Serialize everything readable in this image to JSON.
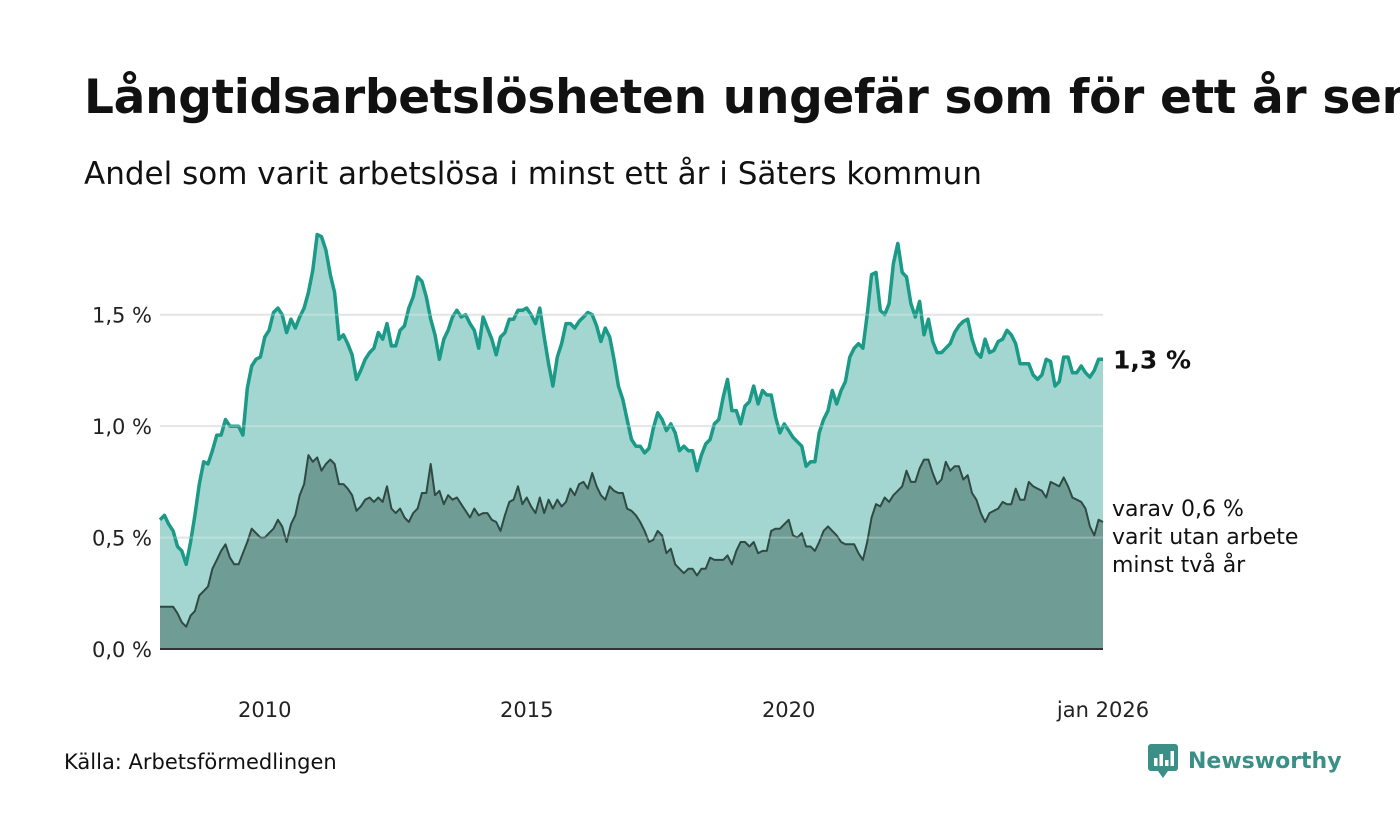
{
  "title": "Långtidsarbetslösheten ungefär som för ett år sen",
  "subtitle": "Andel som varit arbetslösa i minst ett år i Säters kommun",
  "source": "Källa: Arbetsförmedlingen",
  "brand": {
    "name": "Newsworthy",
    "icon": "newsworthy-logo-icon"
  },
  "colors": {
    "total_line": "#1a9a87",
    "total_fill": "#a4d6d1",
    "sub_line": "#2f4a42",
    "sub_fill": "#6f9d96",
    "grid": "#dddddd",
    "brand": "#3a8f86"
  },
  "chart_data": {
    "type": "area",
    "title": "Långtidsarbetslösheten ungefär som för ett år sen",
    "subtitle": "Andel som varit arbetslösa i minst ett år i Säters kommun",
    "x_start": 2008.0,
    "x_step": 0.0833333,
    "xlim": [
      2008.0,
      2026.0
    ],
    "ylim": [
      0,
      1.9
    ],
    "x_ticks": [
      {
        "value": 2010,
        "label": "2010"
      },
      {
        "value": 2015,
        "label": "2015"
      },
      {
        "value": 2020,
        "label": "2020"
      },
      {
        "value": 2026,
        "label": "jan 2026"
      }
    ],
    "y_ticks": [
      {
        "value": 0,
        "label": "0,0 %"
      },
      {
        "value": 0.5,
        "label": "0,5 %"
      },
      {
        "value": 1.0,
        "label": "1,0 %"
      },
      {
        "value": 1.5,
        "label": "1,5 %"
      }
    ],
    "series": [
      {
        "name": "Minst ett år",
        "end_label": "1,3 %",
        "values": [
          0.58,
          0.6,
          0.56,
          0.53,
          0.46,
          0.44,
          0.38,
          0.48,
          0.6,
          0.74,
          0.84,
          0.83,
          0.89,
          0.96,
          0.96,
          1.03,
          1.0,
          1.0,
          1.0,
          0.96,
          1.17,
          1.27,
          1.3,
          1.31,
          1.4,
          1.43,
          1.51,
          1.53,
          1.5,
          1.42,
          1.48,
          1.44,
          1.49,
          1.53,
          1.6,
          1.7,
          1.86,
          1.85,
          1.79,
          1.68,
          1.6,
          1.39,
          1.41,
          1.37,
          1.32,
          1.21,
          1.25,
          1.3,
          1.33,
          1.35,
          1.42,
          1.39,
          1.46,
          1.36,
          1.36,
          1.43,
          1.45,
          1.53,
          1.58,
          1.67,
          1.65,
          1.58,
          1.48,
          1.41,
          1.3,
          1.39,
          1.43,
          1.49,
          1.52,
          1.49,
          1.5,
          1.46,
          1.43,
          1.35,
          1.49,
          1.44,
          1.39,
          1.32,
          1.4,
          1.42,
          1.48,
          1.48,
          1.52,
          1.52,
          1.53,
          1.5,
          1.46,
          1.53,
          1.4,
          1.28,
          1.18,
          1.31,
          1.37,
          1.46,
          1.46,
          1.44,
          1.47,
          1.49,
          1.51,
          1.5,
          1.45,
          1.38,
          1.44,
          1.4,
          1.3,
          1.18,
          1.12,
          1.03,
          0.94,
          0.91,
          0.91,
          0.88,
          0.9,
          0.99,
          1.06,
          1.03,
          0.98,
          1.01,
          0.97,
          0.89,
          0.91,
          0.89,
          0.89,
          0.8,
          0.87,
          0.92,
          0.94,
          1.01,
          1.03,
          1.13,
          1.21,
          1.07,
          1.07,
          1.01,
          1.09,
          1.11,
          1.18,
          1.1,
          1.16,
          1.14,
          1.14,
          1.04,
          0.97,
          1.01,
          0.98,
          0.95,
          0.93,
          0.91,
          0.82,
          0.84,
          0.84,
          0.97,
          1.03,
          1.07,
          1.16,
          1.1,
          1.16,
          1.2,
          1.31,
          1.35,
          1.37,
          1.35,
          1.5,
          1.68,
          1.69,
          1.52,
          1.5,
          1.55,
          1.73,
          1.82,
          1.69,
          1.67,
          1.55,
          1.49,
          1.56,
          1.41,
          1.48,
          1.38,
          1.33,
          1.33,
          1.35,
          1.37,
          1.42,
          1.45,
          1.47,
          1.48,
          1.39,
          1.33,
          1.31,
          1.39,
          1.33,
          1.34,
          1.38,
          1.39,
          1.43,
          1.41,
          1.37,
          1.28,
          1.28,
          1.28,
          1.23,
          1.21,
          1.23,
          1.3,
          1.29,
          1.18,
          1.2,
          1.31,
          1.31,
          1.24,
          1.24,
          1.27,
          1.24,
          1.22,
          1.25,
          1.3,
          1.3
        ]
      },
      {
        "name": "Minst två år",
        "end_label": "varav 0,6 % varit utan arbete minst två år",
        "end_label_lines": [
          "varav 0,6 %",
          "varit utan arbete",
          "minst två år"
        ],
        "values": [
          0.19,
          0.19,
          0.19,
          0.19,
          0.16,
          0.12,
          0.1,
          0.15,
          0.17,
          0.24,
          0.26,
          0.28,
          0.36,
          0.4,
          0.44,
          0.47,
          0.41,
          0.38,
          0.38,
          0.43,
          0.48,
          0.54,
          0.52,
          0.5,
          0.5,
          0.52,
          0.54,
          0.58,
          0.55,
          0.48,
          0.56,
          0.6,
          0.69,
          0.74,
          0.87,
          0.84,
          0.86,
          0.8,
          0.83,
          0.85,
          0.83,
          0.74,
          0.74,
          0.72,
          0.69,
          0.62,
          0.64,
          0.67,
          0.68,
          0.66,
          0.68,
          0.66,
          0.73,
          0.63,
          0.61,
          0.63,
          0.59,
          0.57,
          0.61,
          0.63,
          0.7,
          0.7,
          0.83,
          0.69,
          0.71,
          0.65,
          0.69,
          0.67,
          0.68,
          0.65,
          0.62,
          0.59,
          0.63,
          0.6,
          0.61,
          0.61,
          0.58,
          0.57,
          0.53,
          0.6,
          0.66,
          0.67,
          0.73,
          0.65,
          0.68,
          0.64,
          0.61,
          0.68,
          0.61,
          0.67,
          0.63,
          0.67,
          0.64,
          0.66,
          0.72,
          0.69,
          0.74,
          0.75,
          0.72,
          0.79,
          0.73,
          0.69,
          0.67,
          0.73,
          0.71,
          0.7,
          0.7,
          0.63,
          0.62,
          0.6,
          0.57,
          0.53,
          0.48,
          0.49,
          0.53,
          0.51,
          0.43,
          0.45,
          0.38,
          0.36,
          0.34,
          0.36,
          0.36,
          0.33,
          0.36,
          0.36,
          0.41,
          0.4,
          0.4,
          0.4,
          0.42,
          0.38,
          0.44,
          0.48,
          0.48,
          0.46,
          0.48,
          0.43,
          0.44,
          0.44,
          0.53,
          0.54,
          0.54,
          0.56,
          0.58,
          0.51,
          0.5,
          0.52,
          0.46,
          0.46,
          0.44,
          0.48,
          0.53,
          0.55,
          0.53,
          0.51,
          0.48,
          0.47,
          0.47,
          0.47,
          0.43,
          0.4,
          0.48,
          0.59,
          0.65,
          0.64,
          0.68,
          0.66,
          0.69,
          0.71,
          0.73,
          0.8,
          0.75,
          0.75,
          0.81,
          0.85,
          0.85,
          0.79,
          0.74,
          0.76,
          0.84,
          0.8,
          0.82,
          0.82,
          0.76,
          0.78,
          0.7,
          0.67,
          0.61,
          0.57,
          0.61,
          0.62,
          0.63,
          0.66,
          0.65,
          0.65,
          0.72,
          0.67,
          0.67,
          0.75,
          0.73,
          0.72,
          0.71,
          0.68,
          0.75,
          0.74,
          0.73,
          0.77,
          0.73,
          0.68,
          0.67,
          0.66,
          0.63,
          0.55,
          0.51,
          0.58,
          0.57
        ]
      }
    ]
  }
}
